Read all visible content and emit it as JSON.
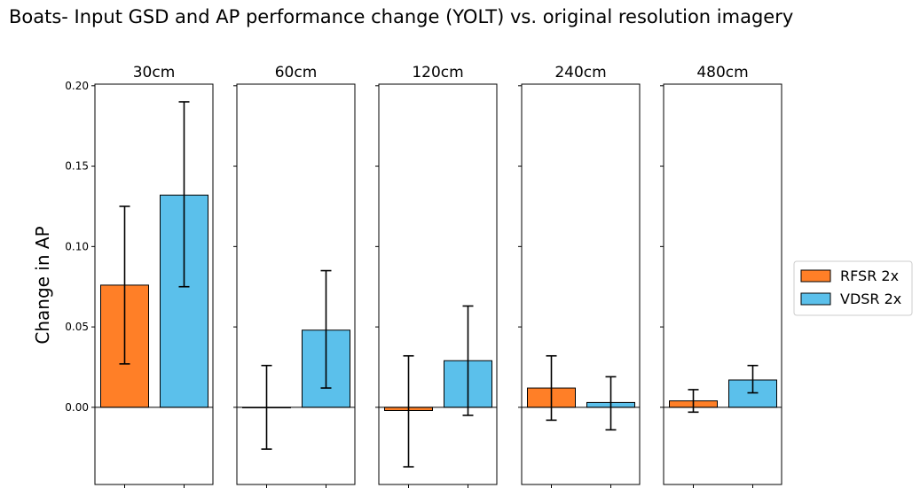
{
  "title": "Boats- Input GSD and AP performance change (YOLT) vs. original resolution imagery",
  "ylabel": "Change in AP",
  "legend": {
    "placement": "right",
    "entries": [
      {
        "label": "RFSR 2x",
        "color": "#ff7f27"
      },
      {
        "label": "VDSR 2x",
        "color": "#5bc0eb"
      }
    ]
  },
  "colors": {
    "rfsr": "#ff7f27",
    "vdsr": "#5bc0eb",
    "edge": "#000000"
  },
  "chart_data": {
    "type": "bar",
    "ylim": [
      -0.048,
      0.201
    ],
    "yticks": [
      "0.00",
      "0.05",
      "0.10",
      "0.15",
      "0.20"
    ],
    "series_names": [
      "RFSR 2x",
      "VDSR 2x"
    ],
    "panels": [
      {
        "title": "30cm",
        "values": [
          0.076,
          0.132
        ],
        "errors_low": [
          0.027,
          0.075
        ],
        "errors_high": [
          0.125,
          0.19
        ]
      },
      {
        "title": "60cm",
        "values": [
          0.0,
          0.048
        ],
        "errors_low": [
          -0.026,
          0.012
        ],
        "errors_high": [
          0.026,
          0.085
        ]
      },
      {
        "title": "120cm",
        "values": [
          -0.002,
          0.029
        ],
        "errors_low": [
          -0.037,
          -0.005
        ],
        "errors_high": [
          0.032,
          0.063
        ]
      },
      {
        "title": "240cm",
        "values": [
          0.012,
          0.003
        ],
        "errors_low": [
          -0.008,
          -0.014
        ],
        "errors_high": [
          0.032,
          0.019
        ]
      },
      {
        "title": "480cm",
        "values": [
          0.004,
          0.017
        ],
        "errors_low": [
          -0.003,
          0.009
        ],
        "errors_high": [
          0.011,
          0.026
        ]
      }
    ]
  }
}
